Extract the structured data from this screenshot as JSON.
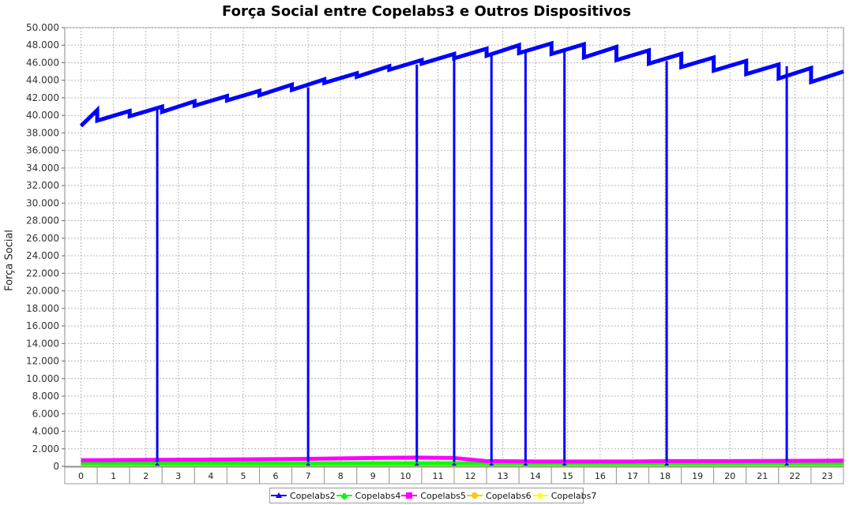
{
  "chart_data": {
    "type": "line",
    "title": "Força Social entre Copelabs3 e Outros Dispositivos",
    "xlabel": "",
    "ylabel": "Força Social",
    "ylim": [
      0,
      50000
    ],
    "y_ticks": [
      "0",
      "2.000",
      "4.000",
      "6.000",
      "8.000",
      "10.000",
      "12.000",
      "14.000",
      "16.000",
      "18.000",
      "20.000",
      "22.000",
      "24.000",
      "26.000",
      "28.000",
      "30.000",
      "32.000",
      "34.000",
      "36.000",
      "38.000",
      "40.000",
      "42.000",
      "44.000",
      "46.000",
      "48.000",
      "50.000"
    ],
    "categories": [
      "0",
      "1",
      "2",
      "3",
      "4",
      "5",
      "6",
      "7",
      "8",
      "9",
      "10",
      "11",
      "12",
      "13",
      "14",
      "15",
      "16",
      "17",
      "18",
      "19",
      "20",
      "21",
      "22",
      "23"
    ],
    "grid": true,
    "legend_position": "bottom",
    "colors": {
      "Copelabs2": "#0000ff",
      "Copelabs4": "#00ff00",
      "Copelabs5": "#ff00ff",
      "Copelabs6": "#ffc800",
      "Copelabs7": "#ffff00"
    },
    "series": [
      {
        "name": "Copelabs2",
        "segments": [
          {
            "start": [
              0,
              38800
            ],
            "end": [
              0.5,
              40600
            ]
          },
          {
            "start": [
              0.5,
              39400
            ],
            "end": [
              1.5,
              40500
            ]
          },
          {
            "start": [
              1.5,
              39900
            ],
            "end": [
              2.5,
              41000
            ]
          },
          {
            "start": [
              2.5,
              40400
            ],
            "end": [
              3.5,
              41600
            ]
          },
          {
            "start": [
              3.5,
              41100
            ],
            "end": [
              4.5,
              42200
            ]
          },
          {
            "start": [
              4.5,
              41700
            ],
            "end": [
              5.5,
              42800
            ]
          },
          {
            "start": [
              5.5,
              42300
            ],
            "end": [
              6.5,
              43500
            ]
          },
          {
            "start": [
              6.5,
              42900
            ],
            "end": [
              7.5,
              44100
            ]
          },
          {
            "start": [
              7.5,
              43700
            ],
            "end": [
              8.5,
              44800
            ]
          },
          {
            "start": [
              8.5,
              44400
            ],
            "end": [
              9.5,
              45600
            ]
          },
          {
            "start": [
              9.5,
              45200
            ],
            "end": [
              10.5,
              46300
            ]
          },
          {
            "start": [
              10.5,
              45900
            ],
            "end": [
              11.5,
              47000
            ]
          },
          {
            "start": [
              11.5,
              46500
            ],
            "end": [
              12.5,
              47600
            ]
          },
          {
            "start": [
              12.5,
              46800
            ],
            "end": [
              13.5,
              48000
            ]
          },
          {
            "start": [
              13.5,
              47100
            ],
            "end": [
              14.5,
              48200
            ]
          },
          {
            "start": [
              14.5,
              47000
            ],
            "end": [
              15.5,
              48100
            ]
          },
          {
            "start": [
              15.5,
              46600
            ],
            "end": [
              16.5,
              47800
            ]
          },
          {
            "start": [
              16.5,
              46300
            ],
            "end": [
              17.5,
              47400
            ]
          },
          {
            "start": [
              17.5,
              45900
            ],
            "end": [
              18.5,
              47000
            ]
          },
          {
            "start": [
              18.5,
              45500
            ],
            "end": [
              19.5,
              46600
            ]
          },
          {
            "start": [
              19.5,
              45100
            ],
            "end": [
              20.5,
              46200
            ]
          },
          {
            "start": [
              20.5,
              44700
            ],
            "end": [
              21.5,
              45800
            ]
          },
          {
            "start": [
              21.5,
              44200
            ],
            "end": [
              22.5,
              45400
            ]
          },
          {
            "start": [
              22.5,
              43800
            ],
            "end": [
              23.5,
              45000
            ]
          }
        ],
        "dips": [
          {
            "x": 2.35,
            "top": 40800
          },
          {
            "x": 7.0,
            "top": 43200
          },
          {
            "x": 10.35,
            "top": 45800
          },
          {
            "x": 11.5,
            "top": 46800
          },
          {
            "x": 12.65,
            "top": 47000
          },
          {
            "x": 13.7,
            "top": 47500
          },
          {
            "x": 14.9,
            "top": 47300
          },
          {
            "x": 18.05,
            "top": 46200
          },
          {
            "x": 21.75,
            "top": 45600
          }
        ]
      },
      {
        "name": "Copelabs4",
        "values": [
          {
            "x": 0,
            "y": 300
          },
          {
            "x": 23.5,
            "y": 300
          }
        ]
      },
      {
        "name": "Copelabs5",
        "values": [
          {
            "x": 0,
            "y": 700
          },
          {
            "x": 3,
            "y": 750
          },
          {
            "x": 7,
            "y": 850
          },
          {
            "x": 9,
            "y": 950
          },
          {
            "x": 10.3,
            "y": 1000
          },
          {
            "x": 11.5,
            "y": 950
          },
          {
            "x": 12.5,
            "y": 600
          },
          {
            "x": 14,
            "y": 550
          },
          {
            "x": 17,
            "y": 550
          },
          {
            "x": 18,
            "y": 600
          },
          {
            "x": 20,
            "y": 600
          },
          {
            "x": 23.5,
            "y": 650
          }
        ]
      },
      {
        "name": "Copelabs6",
        "values": [
          {
            "x": 0,
            "y": 0
          },
          {
            "x": 23.5,
            "y": 0
          }
        ]
      },
      {
        "name": "Copelabs7",
        "values": [
          {
            "x": 0,
            "y": 0
          },
          {
            "x": 23.5,
            "y": 0
          }
        ]
      }
    ]
  }
}
